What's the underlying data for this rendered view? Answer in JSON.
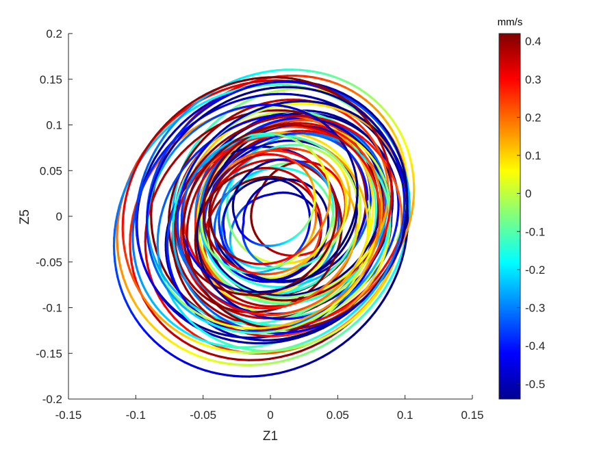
{
  "chart_data": {
    "type": "line",
    "title": "",
    "xlabel": "Z1",
    "ylabel": "Z5",
    "xlim": [
      -0.15,
      0.15
    ],
    "ylim": [
      -0.2,
      0.2
    ],
    "xticks": [
      -0.15,
      -0.1,
      -0.05,
      0,
      0.05,
      0.1,
      0.15
    ],
    "xtick_labels": [
      "-0.15",
      "-0.1",
      "-0.05",
      "0",
      "0.05",
      "0.1",
      "0.15"
    ],
    "yticks": [
      -0.2,
      -0.15,
      -0.1,
      -0.05,
      0,
      0.05,
      0.1,
      0.15,
      0.2
    ],
    "ytick_labels": [
      "-0.2",
      "-0.15",
      "-0.1",
      "-0.05",
      "0",
      "0.05",
      "0.1",
      "0.15",
      "0.2"
    ],
    "grid": false,
    "colormap": "jet",
    "colorbar": {
      "unit": "mm/s",
      "limits": [
        -0.54,
        0.42
      ],
      "ticks": [
        0.4,
        0.3,
        0.2,
        0.1,
        0,
        -0.1,
        -0.2,
        -0.3,
        -0.4,
        -0.5
      ],
      "tick_labels": [
        "0.4",
        "0.3",
        "0.2",
        "0.1",
        "0",
        "-0.1",
        "-0.2",
        "-0.3",
        "-0.4",
        "-0.5"
      ]
    },
    "trajectory": {
      "description_center": [
        0.0,
        0.0
      ],
      "x_extent": [
        -0.142,
        0.128
      ],
      "y_extent": [
        -0.19,
        0.188
      ],
      "loops": 60
    }
  },
  "colors": {
    "jet": [
      "#00008f",
      "#0000ff",
      "#0080ff",
      "#00ffff",
      "#80ff80",
      "#ffff00",
      "#ff8000",
      "#ff0000",
      "#800000"
    ]
  }
}
